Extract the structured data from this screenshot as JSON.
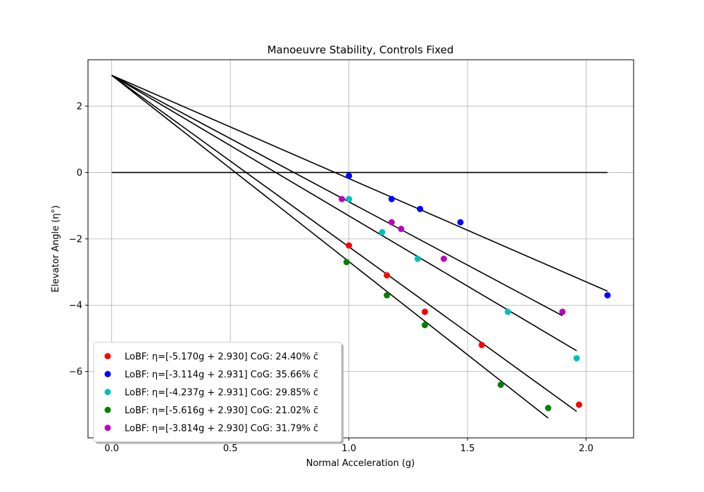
{
  "chart_data": {
    "type": "scatter",
    "title": "Manoeuvre Stability, Controls Fixed",
    "xlabel": "Normal Acceleration (g)",
    "ylabel": "Elevator Angle (η°)",
    "xlim": [
      -0.1,
      2.2
    ],
    "ylim": [
      -8.0,
      3.4
    ],
    "xticks": [
      0.0,
      0.5,
      1.0,
      1.5,
      2.0
    ],
    "xtick_labels": [
      "0.0",
      "0.5",
      "1.0",
      "1.5",
      "2.0"
    ],
    "yticks": [
      2,
      0,
      -2,
      -4,
      -6
    ],
    "ytick_labels": [
      "2",
      "0",
      "−2",
      "−4",
      "−6"
    ],
    "grid": true,
    "legend_position": "lower-left",
    "reference_line": {
      "x": [
        0.0,
        2.09
      ],
      "y": [
        0.0,
        0.0
      ],
      "color": "#000000"
    },
    "series": [
      {
        "name": "LoBF: η=[-5.170g + 2.930]  CoG: 24.40% c̄",
        "color": "#ff0000",
        "x": [
          1.0,
          1.16,
          1.32,
          1.56,
          1.97
        ],
        "y": [
          -2.2,
          -3.1,
          -4.2,
          -5.2,
          -7.0
        ],
        "fit": {
          "slope": -5.17,
          "intercept": 2.93,
          "x_end": 1.96
        }
      },
      {
        "name": "LoBF: η=[-3.114g + 2.931]  CoG: 35.66% c̄",
        "color": "#0000ff",
        "x": [
          1.0,
          1.18,
          1.3,
          1.47,
          2.09
        ],
        "y": [
          -0.1,
          -0.8,
          -1.1,
          -1.5,
          -3.7
        ],
        "fit": {
          "slope": -3.114,
          "intercept": 2.931,
          "x_end": 2.09
        }
      },
      {
        "name": "LoBF: η=[-4.237g + 2.931]  CoG: 29.85% c̄",
        "color": "#00bfbf",
        "x": [
          1.0,
          1.14,
          1.29,
          1.67,
          1.96
        ],
        "y": [
          -0.8,
          -1.8,
          -2.6,
          -4.2,
          -5.6
        ],
        "fit": {
          "slope": -4.237,
          "intercept": 2.931,
          "x_end": 1.96
        }
      },
      {
        "name": "LoBF: η=[-5.616g + 2.930]  CoG: 21.02% c̄",
        "color": "#008000",
        "x": [
          0.99,
          1.16,
          1.32,
          1.64,
          1.84
        ],
        "y": [
          -2.7,
          -3.7,
          -4.6,
          -6.4,
          -7.1
        ],
        "fit": {
          "slope": -5.616,
          "intercept": 2.93,
          "x_end": 1.84
        }
      },
      {
        "name": "LoBF: η=[-3.814g + 2.930]  CoG: 31.79% c̄",
        "color": "#bf00bf",
        "x": [
          0.97,
          1.18,
          1.22,
          1.4,
          1.9
        ],
        "y": [
          -0.8,
          -1.5,
          -1.7,
          -2.6,
          -4.2
        ],
        "fit": {
          "slope": -3.814,
          "intercept": 2.93,
          "x_end": 1.9
        }
      }
    ]
  }
}
